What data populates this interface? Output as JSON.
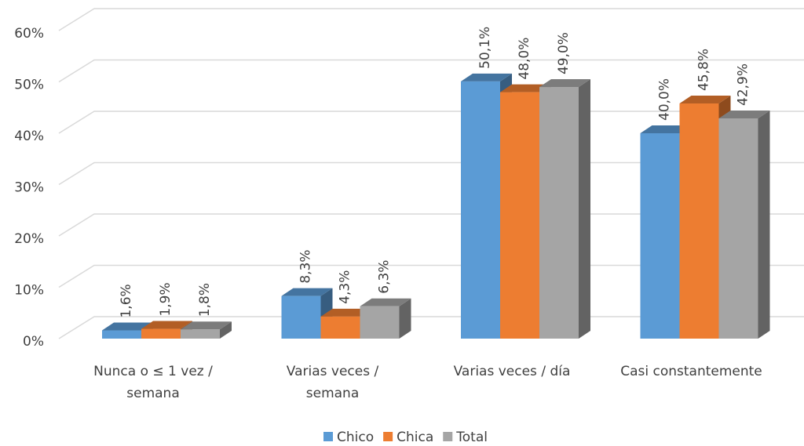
{
  "chart_data": {
    "type": "bar3d",
    "categories": [
      [
        "Nunca o ≤ 1 vez /",
        "semana"
      ],
      [
        "Varias veces /",
        "semana"
      ],
      [
        "Varias veces / día"
      ],
      [
        "Casi constantemente"
      ]
    ],
    "series": [
      {
        "name": "Chico",
        "color": "#5b9bd5",
        "values": [
          1.6,
          8.3,
          50.1,
          40.0
        ],
        "value_labels": [
          "1,6%",
          "8,3%",
          "50,1%",
          "40,0%"
        ]
      },
      {
        "name": "Chica",
        "color": "#ed7d31",
        "values": [
          1.9,
          4.3,
          48.0,
          45.8
        ],
        "value_labels": [
          "1,9%",
          "4,3%",
          "48,0%",
          "45,8%"
        ]
      },
      {
        "name": "Total",
        "color": "#a5a5a5",
        "values": [
          1.8,
          6.3,
          49.0,
          42.9
        ],
        "value_labels": [
          "1,8%",
          "6,3%",
          "49,0%",
          "42,9%"
        ]
      }
    ],
    "ylim": [
      0,
      60
    ],
    "yticks": [
      {
        "value": 0,
        "label": "0%"
      },
      {
        "value": 10,
        "label": "10%"
      },
      {
        "value": 20,
        "label": "20%"
      },
      {
        "value": 30,
        "label": "30%"
      },
      {
        "value": 40,
        "label": "40%"
      },
      {
        "value": 50,
        "label": "50%"
      },
      {
        "value": 60,
        "label": "60%"
      }
    ],
    "grid": true,
    "legend": "bottom"
  }
}
